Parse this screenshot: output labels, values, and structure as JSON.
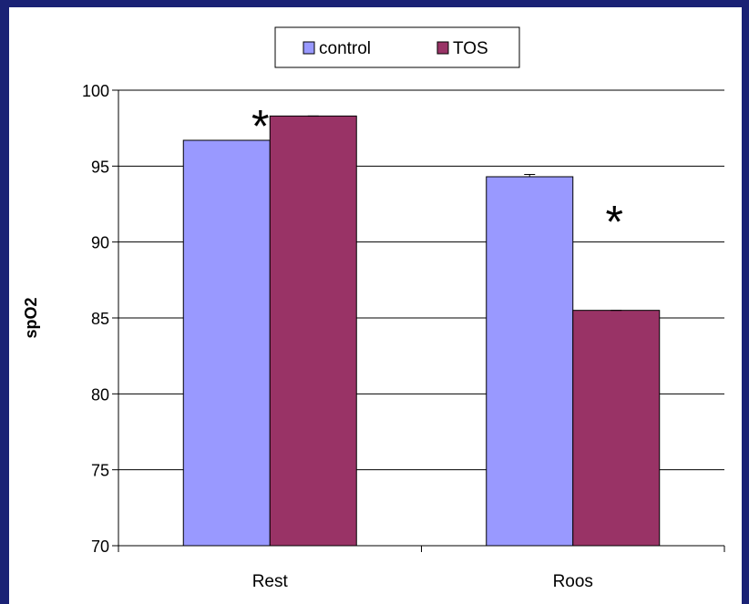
{
  "chart_data": {
    "type": "bar",
    "title": "",
    "xlabel": "",
    "ylabel": "spO2",
    "ylim": [
      70,
      100
    ],
    "yticks": [
      70,
      75,
      80,
      85,
      90,
      95,
      100
    ],
    "grid": "horizontal",
    "legend_position": "top",
    "categories": [
      "Rest",
      "Roos"
    ],
    "series": [
      {
        "name": "control",
        "color": "#9999ff",
        "values": [
          96.7,
          94.3
        ],
        "errors": [
          0,
          0.15
        ]
      },
      {
        "name": "TOS",
        "color": "#993366",
        "values": [
          98.3,
          85.5
        ],
        "errors": [
          0,
          0
        ]
      }
    ],
    "annotations": [
      {
        "text": "*",
        "category": "Rest",
        "series": "TOS"
      },
      {
        "text": "*",
        "category": "Roos",
        "series": "TOS"
      }
    ]
  }
}
